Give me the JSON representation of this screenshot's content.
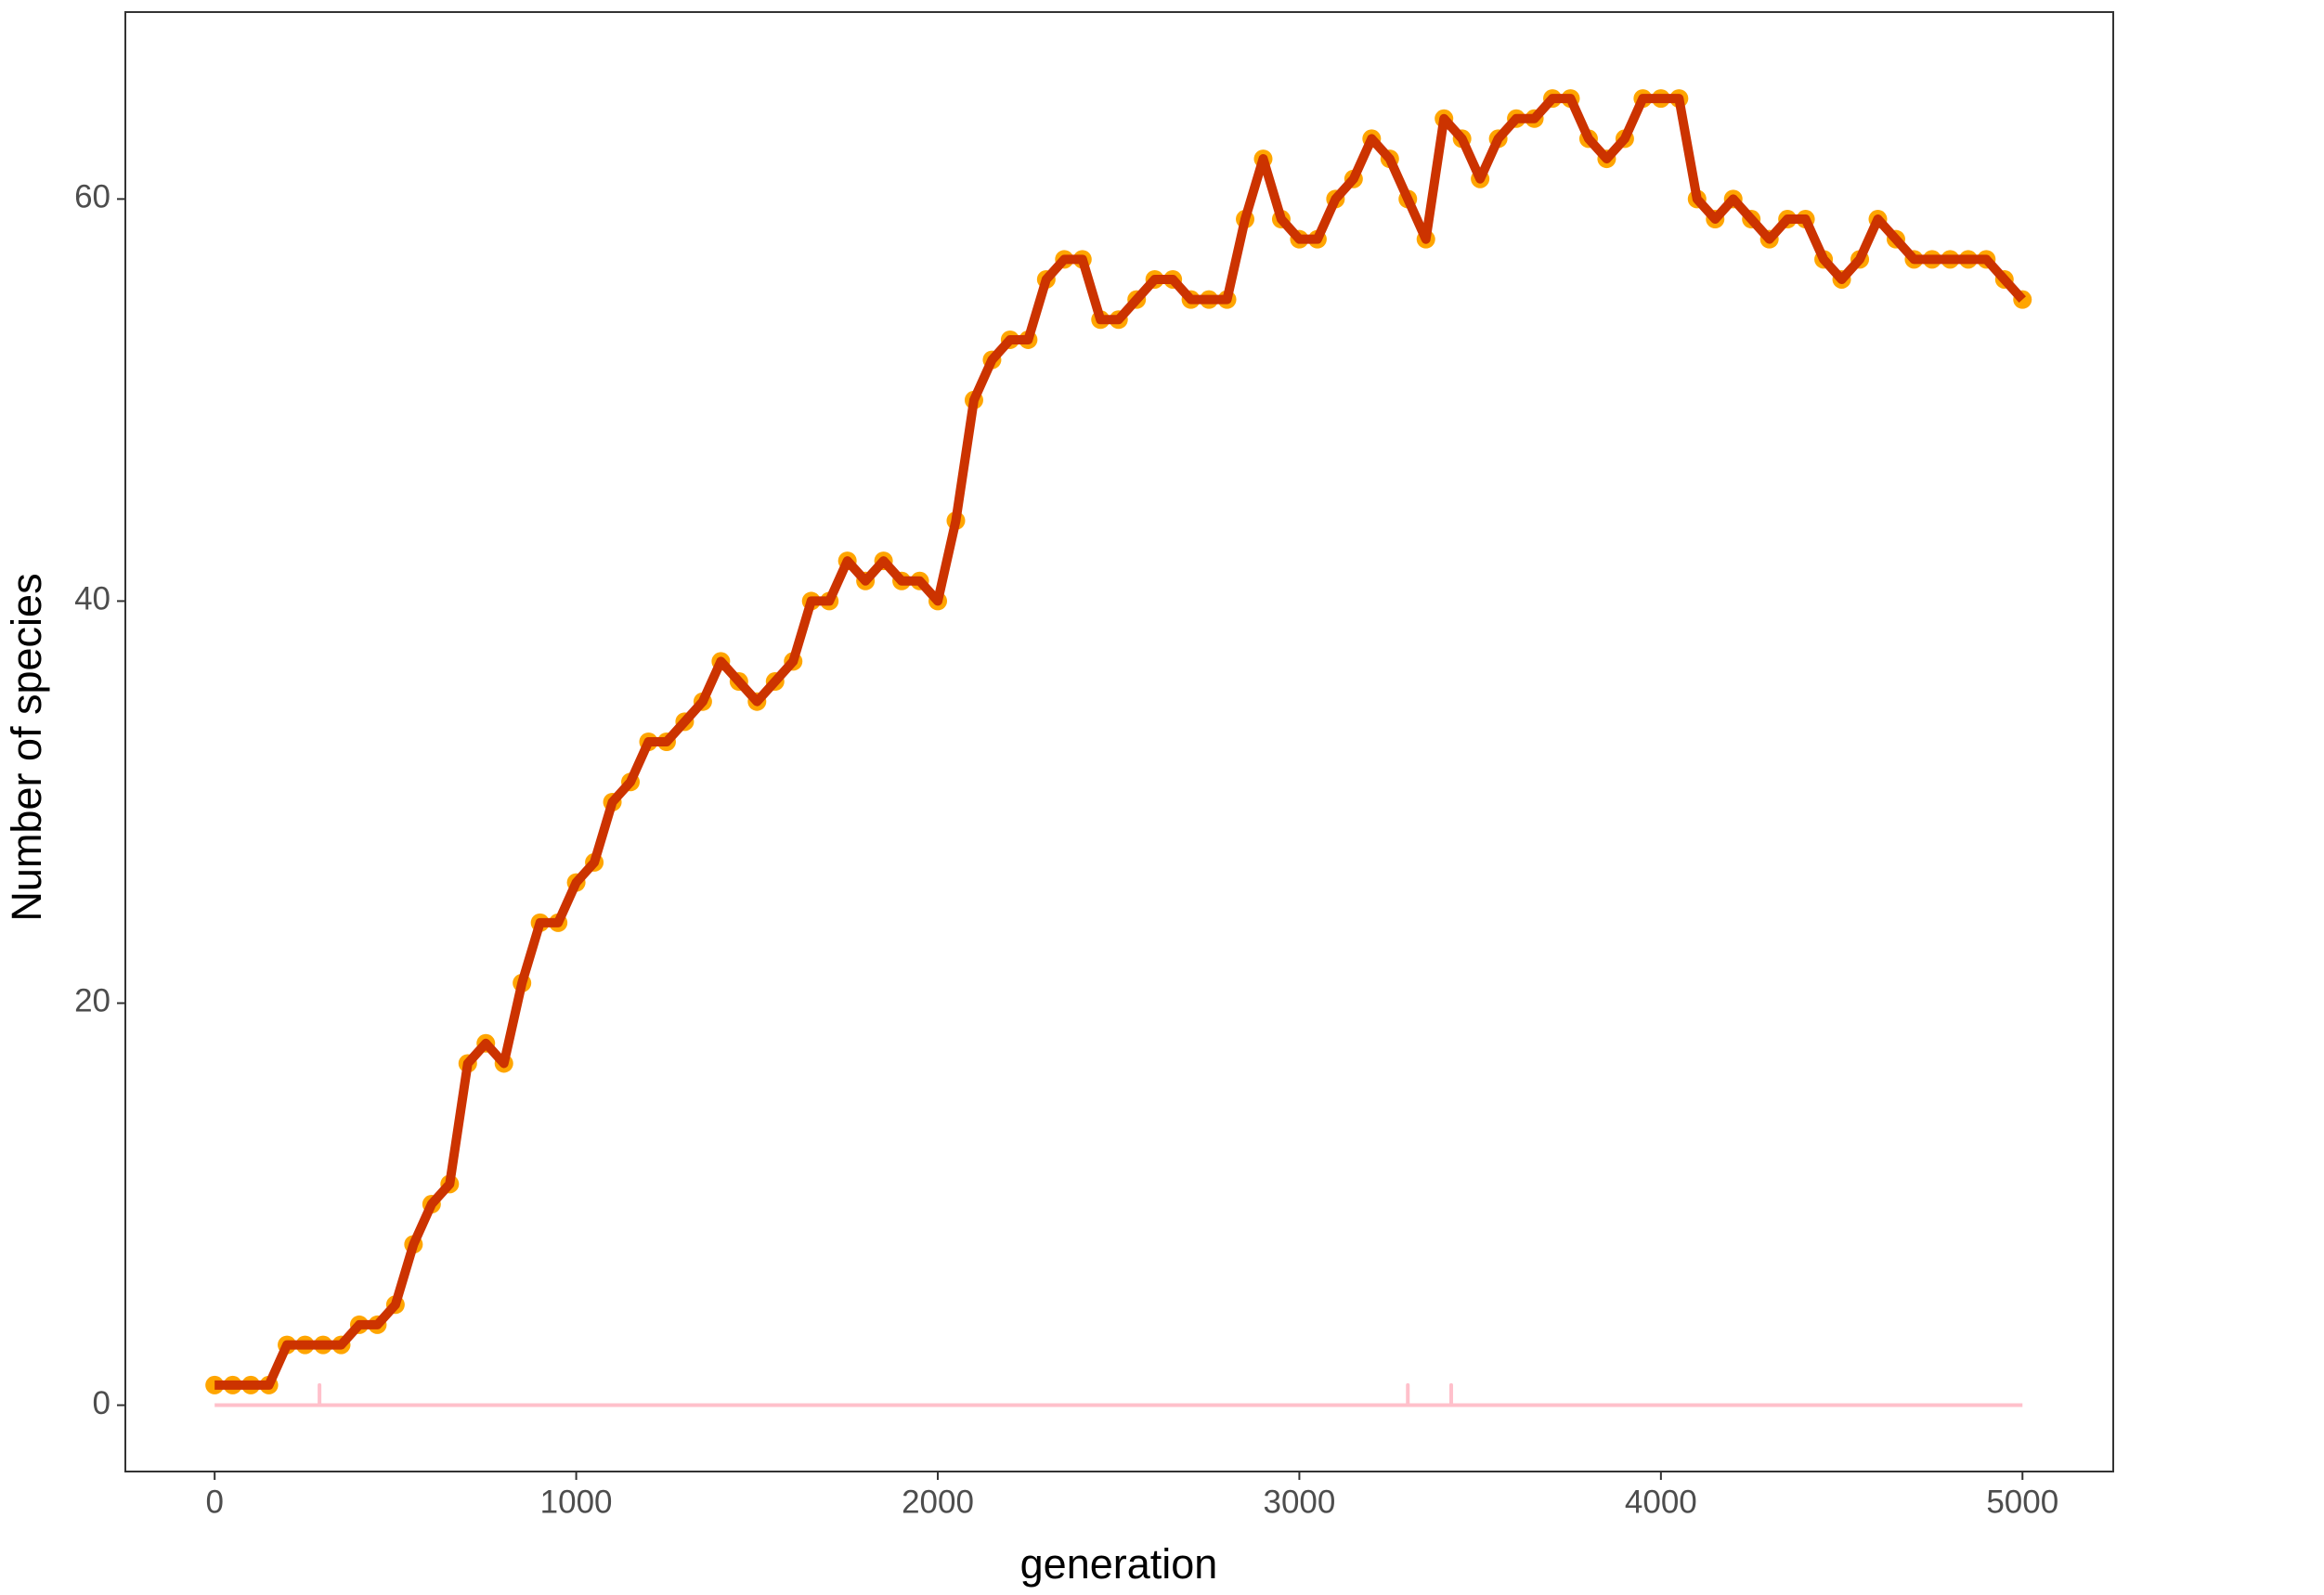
{
  "chart_data": {
    "type": "line",
    "x_label": "generation",
    "y_label": "Number of species",
    "xlim": [
      -247,
      5251
    ],
    "ylim": [
      -3.3,
      69.3
    ],
    "xticks": [
      0,
      1000,
      2000,
      3000,
      4000,
      5000
    ],
    "yticks": [
      0,
      20,
      40,
      60
    ],
    "grid": false,
    "series": [
      {
        "color": "#cc3300",
        "point_color": "#ffa500",
        "x": [
          0,
          50,
          100,
          150,
          200,
          250,
          300,
          350,
          400,
          450,
          500,
          550,
          600,
          650,
          700,
          750,
          800,
          850,
          900,
          950,
          1000,
          1050,
          1100,
          1150,
          1200,
          1250,
          1300,
          1350,
          1400,
          1450,
          1500,
          1550,
          1600,
          1650,
          1700,
          1750,
          1800,
          1850,
          1900,
          1950,
          2000,
          2050,
          2100,
          2150,
          2200,
          2250,
          2300,
          2350,
          2400,
          2450,
          2500,
          2550,
          2600,
          2650,
          2700,
          2750,
          2800,
          2850,
          2900,
          2950,
          3000,
          3050,
          3100,
          3150,
          3200,
          3250,
          3300,
          3350,
          3400,
          3450,
          3500,
          3550,
          3600,
          3650,
          3700,
          3750,
          3800,
          3850,
          3900,
          3950,
          4000,
          4050,
          4100,
          4150,
          4200,
          4250,
          4300,
          4350,
          4400,
          4450,
          4500,
          4550,
          4600,
          4650,
          4700,
          4750,
          4800,
          4850,
          4900,
          4950,
          5000
        ],
        "values": [
          1,
          1,
          1,
          1,
          3,
          3,
          3,
          3,
          4,
          4,
          5,
          8,
          10,
          11,
          17,
          18,
          17,
          21,
          24,
          24,
          26,
          27,
          30,
          31,
          33,
          33,
          34,
          35,
          37,
          36,
          35,
          36,
          37,
          40,
          40,
          42,
          41,
          42,
          41,
          41,
          40,
          44,
          50,
          52,
          53,
          53,
          56,
          57,
          57,
          54,
          54,
          55,
          56,
          56,
          55,
          55,
          55,
          59,
          62,
          59,
          58,
          58,
          60,
          61,
          63,
          62,
          60,
          58,
          64,
          63,
          61,
          63,
          64,
          64,
          65,
          65,
          63,
          62,
          63,
          65,
          65,
          65,
          60,
          59,
          60,
          59,
          58,
          59,
          59,
          57,
          56,
          57,
          59,
          58,
          57,
          57,
          57,
          57,
          57,
          56,
          55
        ]
      },
      {
        "color": "#ffc0cb",
        "x": [
          0,
          290,
          290,
          290,
          3300,
          3300,
          3300,
          3420,
          3420,
          3420,
          5000
        ],
        "values": [
          0,
          0,
          1,
          0,
          0,
          1,
          0,
          0,
          1,
          0,
          0
        ]
      }
    ]
  }
}
